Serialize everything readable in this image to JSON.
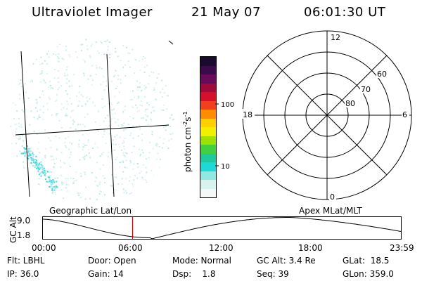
{
  "header": {
    "title": "Ultraviolet Imager",
    "date": "21 May 07",
    "time": "06:01:30 UT"
  },
  "colorbar": {
    "unit_main": "photon cm",
    "unit_exp1": "-2",
    "unit_mid": "s",
    "unit_exp2": "-1",
    "ticks": [
      "100",
      "10"
    ],
    "colors": [
      "#1a0a2e",
      "#3a0a4a",
      "#6a0a5a",
      "#a00a3a",
      "#d4102a",
      "#f04020",
      "#ff8c00",
      "#ffd000",
      "#f0f000",
      "#a0e000",
      "#40d040",
      "#20c8a0",
      "#20d8d8",
      "#90e8e0",
      "#d8f2ee",
      "#f4f8f6"
    ]
  },
  "polar": {
    "labels_time": [
      "12",
      "18",
      "6",
      "0"
    ],
    "labels_lat": [
      "60",
      "70",
      "80"
    ]
  },
  "timeline": {
    "title_left": "Geographic Lat/Lon",
    "title_right": "Apex MLat/MLT",
    "ylabel": "GC Alt",
    "yticks": [
      "9.0",
      "1.8"
    ],
    "xticks": [
      "00:00",
      "06:00",
      "12:00",
      "18:00",
      "23:59"
    ],
    "marker_hour": 6.025
  },
  "status": {
    "filter": "Flt: LBHL",
    "door": "Door: Open",
    "mode": "Mode: Normal",
    "gc_alt": "GC Alt: 3.4 Re",
    "glat": "GLat:  18.5",
    "ip": "IP: 36.0",
    "gain": "Gain: 14",
    "dsp": "Dsp:    1.8",
    "seq": "Seq: 39",
    "glon": "GLon: 359.0"
  }
}
